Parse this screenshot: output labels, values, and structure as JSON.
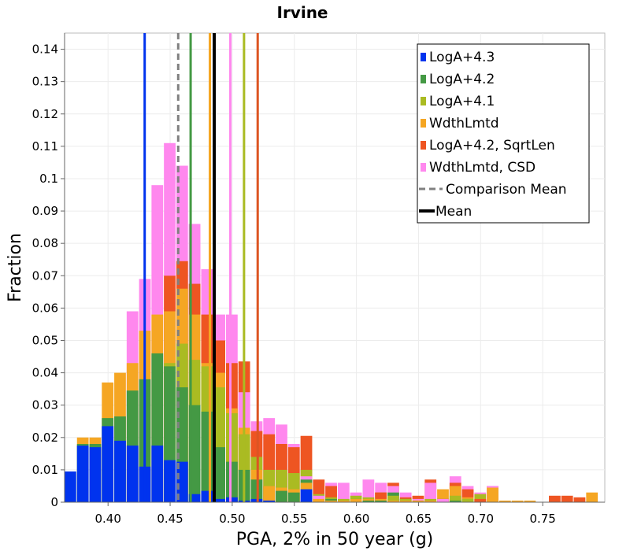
{
  "chart_data": {
    "type": "bar",
    "title": "Irvine",
    "xlabel": "PGA, 2% in 50 year (g)",
    "ylabel": "Fraction",
    "xlim": [
      0.365,
      0.8
    ],
    "ylim": [
      0,
      0.145
    ],
    "bin_width": 0.01,
    "grid": true,
    "legend_position": "top-right",
    "x_ticks": [
      {
        "value": 0.4,
        "label": "0.40"
      },
      {
        "value": 0.45,
        "label": "0.45"
      },
      {
        "value": 0.5,
        "label": "0.50"
      },
      {
        "value": 0.55,
        "label": "0.55"
      },
      {
        "value": 0.6,
        "label": "0.60"
      },
      {
        "value": 0.65,
        "label": "0.65"
      },
      {
        "value": 0.7,
        "label": "0.70"
      },
      {
        "value": 0.75,
        "label": "0.75"
      }
    ],
    "y_ticks": [
      {
        "value": 0,
        "label": "0"
      },
      {
        "value": 0.01,
        "label": "0.01"
      },
      {
        "value": 0.02,
        "label": "0.02"
      },
      {
        "value": 0.03,
        "label": "0.03"
      },
      {
        "value": 0.04,
        "label": "0.04"
      },
      {
        "value": 0.05,
        "label": "0.05"
      },
      {
        "value": 0.06,
        "label": "0.06"
      },
      {
        "value": 0.07,
        "label": "0.07"
      },
      {
        "value": 0.08,
        "label": "0.08"
      },
      {
        "value": 0.09,
        "label": "0.09"
      },
      {
        "value": 0.1,
        "label": "0.1"
      },
      {
        "value": 0.11,
        "label": "0.11"
      },
      {
        "value": 0.12,
        "label": "0.12"
      },
      {
        "value": 0.13,
        "label": "0.13"
      },
      {
        "value": 0.14,
        "label": "0.14"
      }
    ],
    "series": [
      {
        "name": "LogA+4.3",
        "color": "#0033ee",
        "bins": [
          [
            0.37,
            0.0095
          ],
          [
            0.38,
            0.0175
          ],
          [
            0.39,
            0.017
          ],
          [
            0.4,
            0.0235
          ],
          [
            0.41,
            0.019
          ],
          [
            0.42,
            0.0175
          ],
          [
            0.43,
            0.011
          ],
          [
            0.44,
            0.0175
          ],
          [
            0.45,
            0.013
          ],
          [
            0.46,
            0.0125
          ],
          [
            0.47,
            0.0025
          ],
          [
            0.48,
            0.0035
          ],
          [
            0.49,
            0.001
          ],
          [
            0.5,
            0.0015
          ],
          [
            0.51,
            0.0005
          ],
          [
            0.52,
            0.001
          ],
          [
            0.53,
            0.0005
          ],
          [
            0.56,
            0.004
          ]
        ]
      },
      {
        "name": "LogA+4.2",
        "color": "#449944",
        "bins": [
          [
            0.38,
            0.018
          ],
          [
            0.39,
            0.018
          ],
          [
            0.4,
            0.026
          ],
          [
            0.41,
            0.0265
          ],
          [
            0.42,
            0.0345
          ],
          [
            0.43,
            0.038
          ],
          [
            0.44,
            0.046
          ],
          [
            0.45,
            0.042
          ],
          [
            0.46,
            0.0355
          ],
          [
            0.47,
            0.03
          ],
          [
            0.48,
            0.028
          ],
          [
            0.49,
            0.017
          ],
          [
            0.5,
            0.0125
          ],
          [
            0.51,
            0.01
          ],
          [
            0.52,
            0.007
          ],
          [
            0.53,
            0.005
          ],
          [
            0.54,
            0.0035
          ],
          [
            0.55,
            0.003
          ],
          [
            0.56,
            0.007
          ],
          [
            0.57,
            0.002
          ],
          [
            0.58,
            0.001
          ],
          [
            0.59,
            0.0005
          ],
          [
            0.6,
            0.001
          ],
          [
            0.61,
            0.0005
          ],
          [
            0.62,
            0.0005
          ],
          [
            0.63,
            0.003
          ],
          [
            0.64,
            0.001
          ],
          [
            0.65,
            0.0005
          ],
          [
            0.66,
            0.0005
          ],
          [
            0.67,
            0.001
          ],
          [
            0.68,
            0.0005
          ],
          [
            0.69,
            0.001
          ]
        ]
      },
      {
        "name": "LogA+4.1",
        "color": "#aabb22",
        "bins": [
          [
            0.45,
            0.043
          ],
          [
            0.46,
            0.049
          ],
          [
            0.47,
            0.044
          ],
          [
            0.48,
            0.042
          ],
          [
            0.49,
            0.0355
          ],
          [
            0.5,
            0.0275
          ],
          [
            0.51,
            0.021
          ],
          [
            0.52,
            0.014
          ],
          [
            0.53,
            0.01
          ],
          [
            0.54,
            0.01
          ],
          [
            0.55,
            0.009
          ],
          [
            0.56,
            0.01
          ],
          [
            0.57,
            0.0025
          ],
          [
            0.58,
            0.0015
          ],
          [
            0.59,
            0.001
          ],
          [
            0.6,
            0.002
          ],
          [
            0.61,
            0.0015
          ],
          [
            0.62,
            0.003
          ],
          [
            0.63,
            0.002
          ],
          [
            0.64,
            0.001
          ],
          [
            0.65,
            0.0005
          ],
          [
            0.66,
            0.001
          ],
          [
            0.67,
            0.001
          ],
          [
            0.68,
            0.002
          ],
          [
            0.69,
            0.001
          ],
          [
            0.7,
            0.0025
          ]
        ]
      },
      {
        "name": "WdthLmtd",
        "color": "#f5a623",
        "bins": [
          [
            0.38,
            0.02
          ],
          [
            0.39,
            0.02
          ],
          [
            0.4,
            0.037
          ],
          [
            0.41,
            0.04
          ],
          [
            0.42,
            0.043
          ],
          [
            0.43,
            0.053
          ],
          [
            0.44,
            0.058
          ],
          [
            0.45,
            0.059
          ],
          [
            0.46,
            0.066
          ],
          [
            0.47,
            0.058
          ],
          [
            0.48,
            0.043
          ],
          [
            0.49,
            0.04
          ],
          [
            0.5,
            0.029
          ],
          [
            0.51,
            0.023
          ],
          [
            0.52,
            0.01
          ],
          [
            0.53,
            0.005
          ],
          [
            0.54,
            0.0045
          ],
          [
            0.55,
            0.004
          ],
          [
            0.56,
            0.006
          ],
          [
            0.57,
            0.001
          ],
          [
            0.58,
            0.0005
          ],
          [
            0.59,
            0.0005
          ],
          [
            0.6,
            0.001
          ],
          [
            0.61,
            0.001
          ],
          [
            0.62,
            0.001
          ],
          [
            0.63,
            0.0005
          ],
          [
            0.64,
            0.0005
          ],
          [
            0.65,
            0.0005
          ],
          [
            0.66,
            0.0005
          ],
          [
            0.67,
            0.004
          ],
          [
            0.68,
            0.005
          ],
          [
            0.69,
            0.0015
          ],
          [
            0.7,
            0.001
          ],
          [
            0.71,
            0.0045
          ],
          [
            0.72,
            0.0005
          ],
          [
            0.73,
            0.0005
          ],
          [
            0.74,
            0.0005
          ],
          [
            0.79,
            0.003
          ]
        ]
      },
      {
        "name": "LogA+4.2, SqrtLen",
        "color": "#ee5522",
        "bins": [
          [
            0.45,
            0.07
          ],
          [
            0.46,
            0.0745
          ],
          [
            0.47,
            0.0675
          ],
          [
            0.48,
            0.058
          ],
          [
            0.49,
            0.05
          ],
          [
            0.5,
            0.043
          ],
          [
            0.51,
            0.0435
          ],
          [
            0.52,
            0.022
          ],
          [
            0.53,
            0.021
          ],
          [
            0.54,
            0.018
          ],
          [
            0.55,
            0.017
          ],
          [
            0.56,
            0.0205
          ],
          [
            0.57,
            0.007
          ],
          [
            0.58,
            0.005
          ],
          [
            0.62,
            0.003
          ],
          [
            0.63,
            0.006
          ],
          [
            0.64,
            0.0015
          ],
          [
            0.65,
            0.002
          ],
          [
            0.66,
            0.007
          ],
          [
            0.67,
            0.001
          ],
          [
            0.68,
            0.006
          ],
          [
            0.69,
            0.004
          ],
          [
            0.7,
            0.001
          ],
          [
            0.71,
            0.005
          ],
          [
            0.76,
            0.002
          ],
          [
            0.77,
            0.002
          ],
          [
            0.78,
            0.0015
          ]
        ]
      },
      {
        "name": "WdthLmtd, CSD",
        "color": "#ff88ee",
        "bins": [
          [
            0.42,
            0.059
          ],
          [
            0.43,
            0.069
          ],
          [
            0.44,
            0.098
          ],
          [
            0.45,
            0.111
          ],
          [
            0.46,
            0.104
          ],
          [
            0.47,
            0.086
          ],
          [
            0.48,
            0.072
          ],
          [
            0.49,
            0.058
          ],
          [
            0.5,
            0.058
          ],
          [
            0.51,
            0.034
          ],
          [
            0.52,
            0.025
          ],
          [
            0.53,
            0.026
          ],
          [
            0.54,
            0.024
          ],
          [
            0.55,
            0.018
          ],
          [
            0.56,
            0.008
          ],
          [
            0.57,
            0.002
          ],
          [
            0.58,
            0.006
          ],
          [
            0.59,
            0.006
          ],
          [
            0.6,
            0.003
          ],
          [
            0.61,
            0.007
          ],
          [
            0.62,
            0.006
          ],
          [
            0.63,
            0.005
          ],
          [
            0.64,
            0.003
          ],
          [
            0.65,
            0.001
          ],
          [
            0.66,
            0.006
          ],
          [
            0.67,
            0.001
          ],
          [
            0.68,
            0.008
          ],
          [
            0.69,
            0.005
          ],
          [
            0.7,
            0.003
          ],
          [
            0.71,
            0.005
          ]
        ]
      }
    ],
    "vertical_lines": [
      {
        "name": "LogA+4.3 mean",
        "x": 0.4295,
        "color": "#0033ee",
        "style": "solid"
      },
      {
        "name": "LogA+4.2 mean",
        "x": 0.4665,
        "color": "#449944",
        "style": "solid"
      },
      {
        "name": "WdthLmtd mean",
        "x": 0.482,
        "color": "#f5a623",
        "style": "solid"
      },
      {
        "name": "WdthLmtd, CSD mean",
        "x": 0.4985,
        "color": "#ff88ee",
        "style": "solid"
      },
      {
        "name": "LogA+4.1 mean",
        "x": 0.5095,
        "color": "#aabb22",
        "style": "solid"
      },
      {
        "name": "LogA+4.2, SqrtLen mean",
        "x": 0.5205,
        "color": "#dd5522",
        "style": "solid"
      },
      {
        "name": "Comparison Mean",
        "x": 0.4565,
        "color": "#808080",
        "style": "dashed"
      },
      {
        "name": "Mean",
        "x": 0.4855,
        "color": "#000000",
        "style": "solid"
      }
    ],
    "legend": [
      {
        "label": "LogA+4.3",
        "color": "#0033ee",
        "kind": "box"
      },
      {
        "label": "LogA+4.2",
        "color": "#449944",
        "kind": "box"
      },
      {
        "label": "LogA+4.1",
        "color": "#aabb22",
        "kind": "box"
      },
      {
        "label": "WdthLmtd",
        "color": "#f5a623",
        "kind": "box"
      },
      {
        "label": "LogA+4.2, SqrtLen",
        "color": "#ee5522",
        "kind": "box"
      },
      {
        "label": "WdthLmtd, CSD",
        "color": "#ff88ee",
        "kind": "box"
      },
      {
        "label": "Comparison Mean",
        "color": "#808080",
        "kind": "dashed"
      },
      {
        "label": "Mean",
        "color": "#000000",
        "kind": "line"
      }
    ]
  }
}
